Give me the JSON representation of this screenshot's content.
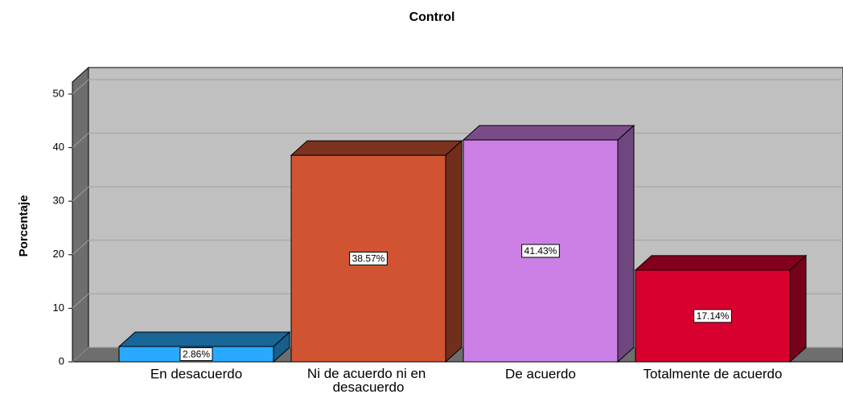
{
  "chart_data": {
    "type": "bar3d",
    "title": "Control",
    "y_label": "Porcentaje",
    "categories": [
      "En desacuerdo",
      "Ni de acuerdo ni en desacuerdo",
      "De acuerdo",
      "Totalmente de acuerdo"
    ],
    "values": [
      2.86,
      38.57,
      41.43,
      17.14
    ],
    "value_labels": [
      "2.86%",
      "38.57%",
      "41.43%",
      "17.14%"
    ],
    "colors": [
      "#29aaff",
      "#d05332",
      "#cc80e6",
      "#d8002f"
    ],
    "ylim": [
      0,
      50
    ],
    "yticks": [
      0,
      10,
      20,
      30,
      40,
      50
    ],
    "grid": true
  }
}
